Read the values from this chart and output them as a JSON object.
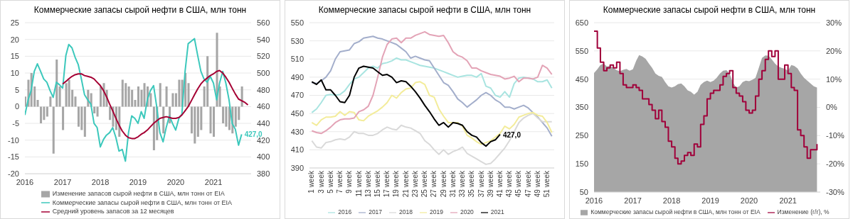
{
  "chart_data": [
    {
      "type": "bar",
      "title": "Коммерческие запасы сырой нефти в США, млн тонн",
      "x": [
        "2016-01",
        "2016-02",
        "2016-03",
        "2016-04",
        "2016-05",
        "2016-06",
        "2016-07",
        "2016-08",
        "2016-09",
        "2016-10",
        "2016-11",
        "2016-12",
        "2017-01",
        "2017-02",
        "2017-03",
        "2017-04",
        "2017-05",
        "2017-06",
        "2017-07",
        "2017-08",
        "2017-09",
        "2017-10",
        "2017-11",
        "2017-12",
        "2018-01",
        "2018-02",
        "2018-03",
        "2018-04",
        "2018-05",
        "2018-06",
        "2018-07",
        "2018-08",
        "2018-09",
        "2018-10",
        "2018-11",
        "2018-12",
        "2019-01",
        "2019-02",
        "2019-03",
        "2019-04",
        "2019-05",
        "2019-06",
        "2019-07",
        "2019-08",
        "2019-09",
        "2019-10",
        "2019-11",
        "2019-12",
        "2020-01",
        "2020-02",
        "2020-03",
        "2020-04",
        "2020-05",
        "2020-06",
        "2020-07",
        "2020-08",
        "2020-09",
        "2020-10",
        "2020-11",
        "2020-12",
        "2021-01",
        "2021-02",
        "2021-03",
        "2021-04",
        "2021-05",
        "2021-06",
        "2021-07",
        "2021-08",
        "2021-09",
        "2021-10"
      ],
      "series": [
        {
          "name": "Изменение запасов сырой нефти в США, млн тонн от EIA",
          "color": "#a6a6a6",
          "values": [
            3,
            8,
            10,
            6,
            2,
            -5,
            -4,
            -3,
            3,
            -14,
            14,
            6,
            -7,
            7,
            8,
            5,
            3,
            -6,
            -7,
            -9,
            5,
            4,
            -2,
            -3,
            6,
            7,
            5,
            -4,
            -6,
            -7,
            -9,
            8,
            7,
            6,
            5,
            2,
            6,
            5,
            7,
            6,
            4,
            -13,
            -10,
            7,
            -8,
            6,
            -5,
            4,
            4,
            8,
            8,
            10,
            7,
            -8,
            -11,
            -9,
            -7,
            6,
            15,
            -8,
            -9,
            22,
            6,
            -5,
            -6,
            -7,
            -8,
            -6,
            -4,
            6
          ]
        },
        {
          "name": "Коммерческие запасы сырой нефти в США, млн тонн от EIA",
          "type": "line",
          "axis": "y2",
          "color": "#3cc8bc",
          "values": [
            450,
            468,
            479,
            502,
            511,
            502,
            493,
            489,
            479,
            471,
            489,
            486,
            482,
            521,
            534,
            530,
            519,
            510,
            493,
            474,
            468,
            463,
            440,
            435,
            412,
            421,
            426,
            429,
            435,
            423,
            407,
            409,
            395,
            429,
            449,
            446,
            440,
            454,
            446,
            468,
            479,
            485,
            460,
            429,
            418,
            435,
            449,
            440,
            432,
            446,
            451,
            502,
            535,
            538,
            541,
            521,
            502,
            493,
            489,
            496,
            488,
            468,
            488,
            502,
            488,
            468,
            440,
            433,
            414,
            427
          ],
          "value_labels": [
            null,
            null,
            null,
            null,
            null,
            null,
            null,
            null,
            null,
            null,
            null,
            null,
            null,
            null,
            null,
            null,
            null,
            null,
            null,
            null,
            null,
            null,
            null,
            null,
            null,
            null,
            null,
            null,
            null,
            null,
            null,
            null,
            null,
            null,
            null,
            null,
            null,
            null,
            null,
            null,
            null,
            null,
            null,
            null,
            null,
            null,
            null,
            null,
            null,
            null,
            null,
            null,
            null,
            null,
            null,
            null,
            null,
            null,
            null,
            null,
            null,
            null,
            null,
            null,
            null,
            null,
            null,
            null,
            null,
            "427,0"
          ]
        },
        {
          "name": "Средний уровень запасов за 12 месяцев",
          "type": "line",
          "axis": "y2",
          "color": "#a50034",
          "x": [
            "2017-01",
            "2017-02",
            "2017-03",
            "2017-04",
            "2017-05",
            "2017-06",
            "2017-07",
            "2017-08",
            "2017-09",
            "2017-10",
            "2017-11",
            "2017-12",
            "2018-01",
            "2018-02",
            "2018-03",
            "2018-04",
            "2018-05",
            "2018-06",
            "2018-07",
            "2018-08",
            "2018-09",
            "2018-10",
            "2018-11",
            "2018-12",
            "2019-01",
            "2019-02",
            "2019-03",
            "2019-04",
            "2019-05",
            "2019-06",
            "2019-07",
            "2019-08",
            "2019-09",
            "2019-10",
            "2019-11",
            "2019-12",
            "2020-01",
            "2020-02",
            "2020-03",
            "2020-04",
            "2020-05",
            "2020-06",
            "2020-07",
            "2020-08",
            "2020-09",
            "2020-10",
            "2020-11",
            "2020-12",
            "2021-01",
            "2021-02",
            "2021-03",
            "2021-04",
            "2021-05",
            "2021-06",
            "2021-07",
            "2021-08",
            "2021-09",
            "2021-10",
            "2021-11",
            "2021-12"
          ],
          "values": [
            487,
            490,
            493,
            496,
            498,
            499,
            499,
            497,
            496,
            495,
            493,
            489,
            485,
            479,
            472,
            463,
            455,
            446,
            438,
            431,
            426,
            423,
            422,
            422,
            424,
            427,
            429,
            432,
            436,
            440,
            443,
            446,
            447,
            448,
            447,
            446,
            446,
            447,
            450,
            455,
            460,
            467,
            474,
            481,
            487,
            491,
            494,
            497,
            499,
            502,
            503,
            500,
            495,
            489,
            482,
            475,
            469,
            467,
            465,
            462
          ]
        }
      ],
      "xlim": [
        "2016-01",
        "2022-01"
      ],
      "xticks": [
        {
          "value": "2016-01",
          "label": "2016"
        },
        {
          "value": "2017-01",
          "label": "2017"
        },
        {
          "value": "2018-01",
          "label": "2018"
        },
        {
          "value": "2019-01",
          "label": "2019"
        },
        {
          "value": "2020-01",
          "label": "2020"
        },
        {
          "value": "2021-01",
          "label": "2021"
        }
      ],
      "ylim": [
        -20,
        25
      ],
      "yticks": [
        -20,
        -15,
        -10,
        -5,
        0,
        5,
        10,
        15,
        20,
        25
      ],
      "y2lim": [
        380,
        560
      ],
      "y2ticks": [
        380,
        400,
        420,
        440,
        460,
        480,
        500,
        520,
        540,
        560
      ],
      "grid": "y",
      "legend": "bottom",
      "line_style": "solid"
    },
    {
      "type": "line",
      "title": "Коммерческие запасы сырой нефти в США, млн тонн",
      "categories": [
        "1 week",
        null,
        "3 week",
        null,
        "5 week",
        null,
        "7 week",
        null,
        "9 week",
        null,
        "11 week",
        null,
        "13 week",
        null,
        "15 week",
        null,
        "17 week",
        null,
        "19 week",
        null,
        "21 week",
        null,
        "23 week",
        null,
        "25 week",
        null,
        "27 week",
        null,
        "29 week",
        null,
        "31 week",
        null,
        "33 week",
        null,
        "35 week",
        null,
        "37 week",
        null,
        "39 week",
        null,
        "41 week",
        null,
        "43 week",
        null,
        "45 week",
        null,
        "47 week",
        null,
        "49 week",
        null,
        "51 week",
        null
      ],
      "series": [
        {
          "name": "2016",
          "color": "#a8e4e0",
          "values": [
            451,
            455,
            462,
            470,
            471,
            470,
            471,
            475,
            482,
            488,
            490,
            495,
            500,
            502,
            500,
            505,
            506,
            508,
            511,
            509,
            509,
            507,
            505,
            503,
            502,
            501,
            500,
            498,
            496,
            494,
            492,
            490,
            491,
            492,
            492,
            490,
            494,
            480,
            478,
            470,
            468,
            474,
            468,
            483,
            489,
            490,
            489,
            488,
            485,
            485,
            487,
            478
          ]
        },
        {
          "name": "2017",
          "color": "#a3aecb",
          "values": [
            484,
            483,
            486,
            490,
            497,
            510,
            518,
            519,
            520,
            527,
            529,
            533,
            534,
            535,
            533,
            532,
            530,
            528,
            526,
            522,
            518,
            511,
            513,
            511,
            509,
            508,
            500,
            492,
            484,
            481,
            474,
            466,
            462,
            457,
            461,
            465,
            470,
            473,
            470,
            465,
            462,
            457,
            457,
            455,
            457,
            459,
            456,
            451,
            446,
            440,
            434,
            425
          ]
        },
        {
          "name": "2018",
          "color": "#d9d9d9",
          "values": [
            420,
            413,
            412,
            418,
            419,
            421,
            422,
            421,
            424,
            430,
            428,
            428,
            426,
            426,
            428,
            432,
            435,
            433,
            432,
            437,
            435,
            434,
            431,
            428,
            420,
            416,
            410,
            405,
            410,
            405,
            408,
            410,
            413,
            406,
            403,
            400,
            397,
            394,
            395,
            400,
            406,
            412,
            420,
            430,
            440,
            445,
            448,
            450,
            445,
            441,
            441,
            441
          ]
        },
        {
          "name": "2019",
          "color": "#f3ec9a",
          "values": [
            440,
            437,
            443,
            446,
            446,
            447,
            452,
            448,
            452,
            451,
            443,
            442,
            447,
            450,
            453,
            457,
            462,
            470,
            467,
            473,
            477,
            478,
            484,
            485,
            482,
            470,
            468,
            455,
            447,
            440,
            440,
            440,
            436,
            426,
            423,
            419,
            416,
            418,
            420,
            424,
            428,
            436,
            433,
            438,
            446,
            448,
            450,
            451,
            448,
            447,
            440,
            429
          ]
        },
        {
          "name": "2020",
          "color": "#e3a3b6",
          "values": [
            431,
            429,
            428,
            431,
            435,
            440,
            443,
            444,
            444,
            445,
            452,
            454,
            458,
            470,
            490,
            512,
            526,
            532,
            533,
            528,
            533,
            533,
            536,
            538,
            540,
            537,
            536,
            535,
            536,
            528,
            518,
            514,
            512,
            508,
            500,
            500,
            497,
            495,
            493,
            492,
            491,
            488,
            489,
            491,
            485,
            489,
            489,
            488,
            490,
            503,
            500,
            493
          ]
        },
        {
          "name": "2021",
          "color": "#000000",
          "values": [
            485,
            482,
            487,
            476,
            476,
            470,
            463,
            462,
            470,
            490,
            500,
            502,
            501,
            500,
            496,
            492,
            493,
            490,
            484,
            486,
            485,
            480,
            474,
            467,
            459,
            452,
            444,
            437,
            440,
            435,
            440,
            439,
            437,
            430,
            426,
            424,
            418,
            414,
            419,
            421,
            427,
            null,
            null,
            null,
            null,
            null,
            null,
            null,
            null,
            null,
            null,
            null
          ],
          "value_labels": [
            null,
            null,
            null,
            null,
            null,
            null,
            null,
            null,
            null,
            null,
            null,
            null,
            null,
            null,
            null,
            null,
            null,
            null,
            null,
            null,
            null,
            null,
            null,
            null,
            null,
            null,
            null,
            null,
            null,
            null,
            null,
            null,
            null,
            null,
            null,
            null,
            null,
            null,
            null,
            null,
            "427,0",
            null,
            null,
            null,
            null,
            null,
            null,
            null,
            null,
            null,
            null,
            null
          ]
        }
      ],
      "ylim": [
        390,
        550
      ],
      "yticks": [
        390,
        410,
        430,
        450,
        470,
        490,
        510,
        530,
        550
      ],
      "grid": "y",
      "legend": "bottom",
      "line_style": "solid"
    },
    {
      "type": "area",
      "title": "Коммерческие запасы сырой нефти в США, млн тонн",
      "x": [
        "2016-01",
        "2016-02",
        "2016-03",
        "2016-04",
        "2016-05",
        "2016-06",
        "2016-07",
        "2016-08",
        "2016-09",
        "2016-10",
        "2016-11",
        "2016-12",
        "2017-01",
        "2017-02",
        "2017-03",
        "2017-04",
        "2017-05",
        "2017-06",
        "2017-07",
        "2017-08",
        "2017-09",
        "2017-10",
        "2017-11",
        "2017-12",
        "2018-01",
        "2018-02",
        "2018-03",
        "2018-04",
        "2018-05",
        "2018-06",
        "2018-07",
        "2018-08",
        "2018-09",
        "2018-10",
        "2018-11",
        "2018-12",
        "2019-01",
        "2019-02",
        "2019-03",
        "2019-04",
        "2019-05",
        "2019-06",
        "2019-07",
        "2019-08",
        "2019-09",
        "2019-10",
        "2019-11",
        "2019-12",
        "2020-01",
        "2020-02",
        "2020-03",
        "2020-04",
        "2020-05",
        "2020-06",
        "2020-07",
        "2020-08",
        "2020-09",
        "2020-10",
        "2020-11",
        "2020-12",
        "2021-01",
        "2021-02",
        "2021-03",
        "2021-04",
        "2021-05",
        "2021-06",
        "2021-07",
        "2021-08",
        "2021-09",
        "2021-10"
      ],
      "series": [
        {
          "name": "Коммерческие запасы сырой нефти в США, млн тонн от EIA",
          "color": "#a6a6a6",
          "values": [
            472,
            485,
            500,
            505,
            495,
            497,
            490,
            482,
            478,
            483,
            486,
            480,
            485,
            515,
            535,
            530,
            522,
            505,
            490,
            470,
            462,
            458,
            440,
            425,
            420,
            425,
            432,
            435,
            425,
            410,
            405,
            395,
            405,
            430,
            440,
            445,
            440,
            445,
            455,
            470,
            480,
            482,
            470,
            438,
            420,
            425,
            440,
            445,
            443,
            448,
            455,
            490,
            525,
            534,
            533,
            520,
            505,
            495,
            490,
            487,
            480,
            500,
            497,
            488,
            470,
            455,
            445,
            435,
            425,
            420
          ]
        },
        {
          "name": "Изменение (г/г), %",
          "type": "step",
          "axis": "y2",
          "color": "#a0003a",
          "values": [
            27,
            21,
            16,
            13,
            14,
            15,
            14,
            16,
            12,
            8,
            7,
            7,
            8,
            7,
            6,
            3,
            3,
            1,
            -1,
            -4,
            -1,
            -5,
            -7,
            -12,
            -14,
            -18,
            -20,
            -19,
            -17,
            -16,
            -17,
            -13,
            -14,
            -6,
            -3,
            3,
            5,
            6,
            6,
            8,
            11,
            12,
            13,
            7,
            5,
            4,
            2,
            -1,
            -2,
            -1,
            4,
            10,
            13,
            17,
            20,
            18,
            20,
            10,
            10,
            15,
            12,
            7,
            6,
            -8,
            -10,
            -14,
            -18,
            -15,
            -15,
            -13
          ]
        }
      ],
      "xlim": [
        "2016-01",
        "2021-11"
      ],
      "xticks": [
        {
          "value": "2016-01",
          "label": "2016"
        },
        {
          "value": "2017-01",
          "label": "2017"
        },
        {
          "value": "2018-01",
          "label": "2018"
        },
        {
          "value": "2019-01",
          "label": "2019"
        },
        {
          "value": "2020-01",
          "label": "2020"
        },
        {
          "value": "2021-01",
          "label": "2021"
        }
      ],
      "ylim": [
        50,
        650
      ],
      "yticks": [
        50,
        150,
        250,
        350,
        450,
        550,
        650
      ],
      "y2lim": [
        -30,
        30
      ],
      "y2ticks": [
        {
          "value": -30,
          "label": "-30%"
        },
        {
          "value": -20,
          "label": "-20%"
        },
        {
          "value": -10,
          "label": "-10%"
        },
        {
          "value": 0,
          "label": "0%"
        },
        {
          "value": 10,
          "label": "10%"
        },
        {
          "value": 20,
          "label": "20%"
        },
        {
          "value": 30,
          "label": "30%"
        }
      ],
      "grid": "y",
      "legend": "bottom",
      "line_style": "solid"
    }
  ]
}
